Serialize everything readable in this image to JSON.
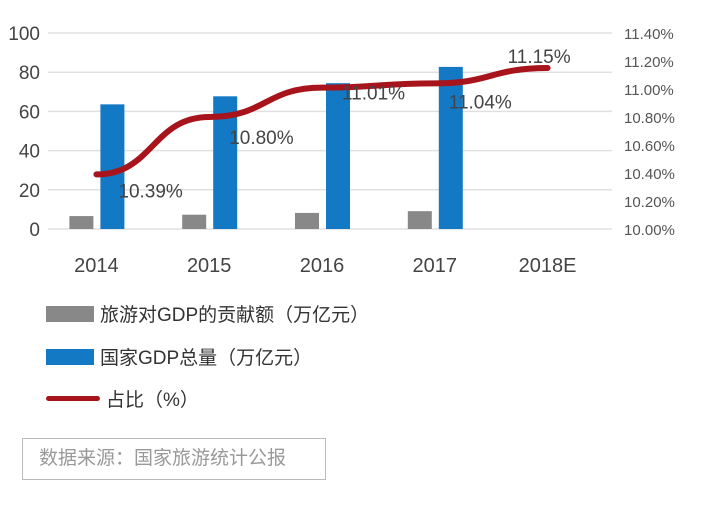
{
  "chart_data": {
    "type": "bar",
    "categories": [
      "2014",
      "2015",
      "2016",
      "2017",
      "2018E"
    ],
    "left_axis": {
      "ylim": [
        0,
        100
      ],
      "ticks": [
        "0",
        "20",
        "40",
        "60",
        "80",
        "100"
      ]
    },
    "right_axis": {
      "ylim": [
        10.0,
        11.4
      ],
      "ticks": [
        "10.00%",
        "10.20%",
        "10.40%",
        "10.60%",
        "10.80%",
        "11.00%",
        "11.20%",
        "11.40%"
      ]
    },
    "grid": true,
    "legend_placement": "bottom",
    "series": [
      {
        "name": "旅游对GDP的贡献额（万亿元）",
        "type": "bar",
        "axis": "left",
        "color": "#888888",
        "values": [
          6.6,
          7.3,
          8.2,
          9.1,
          null
        ]
      },
      {
        "name": "国家GDP总量（万亿元）",
        "type": "bar",
        "axis": "left",
        "color": "#1479c4",
        "values": [
          63.6,
          67.7,
          74.4,
          82.7,
          null
        ]
      },
      {
        "name": "占比（%）",
        "type": "line",
        "axis": "right",
        "color": "#a8141c",
        "values": [
          10.39,
          10.8,
          11.01,
          11.04,
          11.15
        ],
        "labels": [
          "10.39%",
          "10.80%",
          "11.01%",
          "11.04%",
          "11.15%"
        ]
      }
    ]
  },
  "source": "数据来源：国家旅游统计公报"
}
